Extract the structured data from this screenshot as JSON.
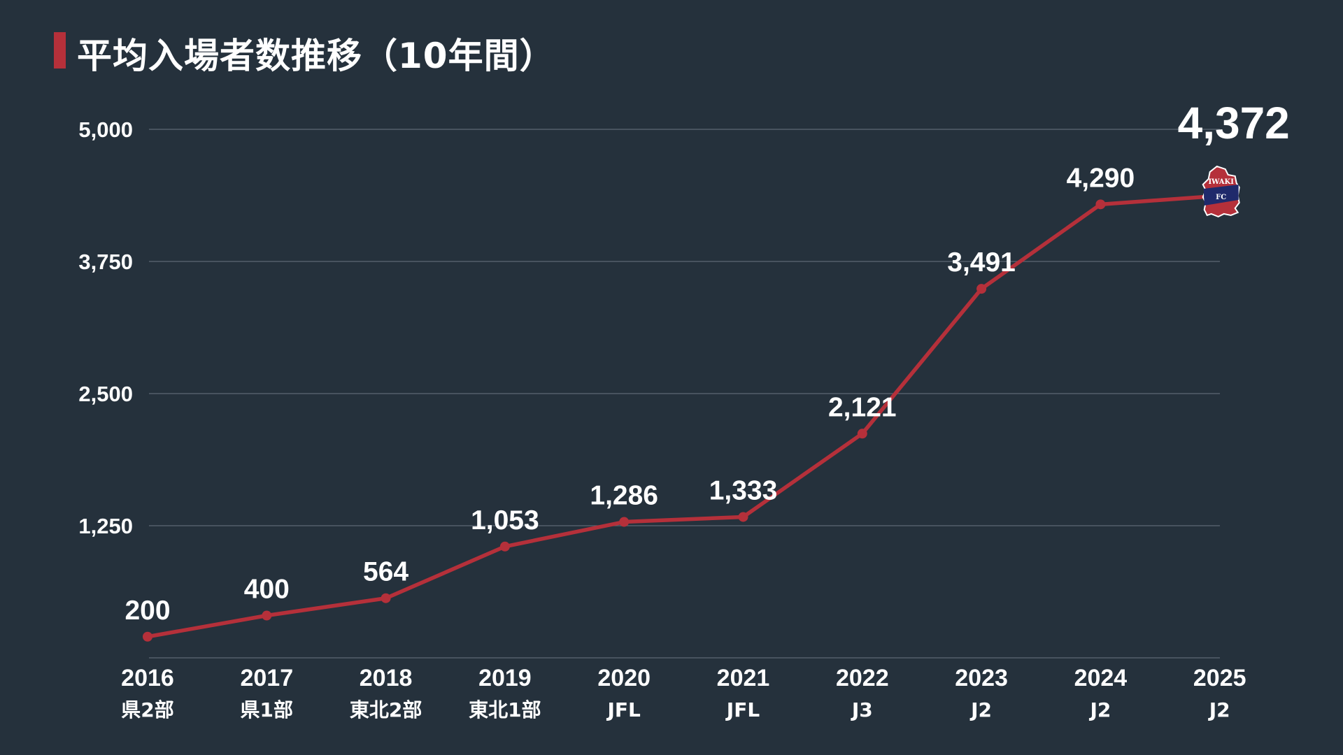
{
  "title": "平均入場者数推移（10年間）",
  "colors": {
    "background": "#25313c",
    "line": "#b5303a",
    "accent": "#b5303a",
    "grid": "#5d6874",
    "text": "#ffffff",
    "logo_navy": "#1f2a6b"
  },
  "logo": {
    "icon": "iwaki-fc-crest-icon",
    "text_top": "IWAKI",
    "text_bottom": "FC"
  },
  "chart_data": {
    "type": "line",
    "title": "平均入場者数推移（10年間）",
    "categories": [
      "2016",
      "2017",
      "2018",
      "2019",
      "2020",
      "2021",
      "2022",
      "2023",
      "2024",
      "2025"
    ],
    "leagues": [
      "県2部",
      "県1部",
      "東北2部",
      "東北1部",
      "JFL",
      "JFL",
      "J3",
      "J2",
      "J2",
      "J2"
    ],
    "series": [
      {
        "values": [
          200,
          400,
          564,
          1053,
          1286,
          1333,
          2121,
          3491,
          4290,
          4372
        ],
        "labels": [
          "200",
          "400",
          "564",
          "1,053",
          "1,286",
          "1,333",
          "2,121",
          "3,491",
          "4,290",
          "4,372"
        ]
      }
    ],
    "yticks": [
      1250,
      2500,
      3750,
      5000
    ],
    "ytick_labels": [
      "1,250",
      "2,500",
      "3,750",
      "5,000"
    ],
    "ylim": [
      0,
      5000
    ],
    "grid": true,
    "xlabel": "",
    "ylabel": ""
  }
}
